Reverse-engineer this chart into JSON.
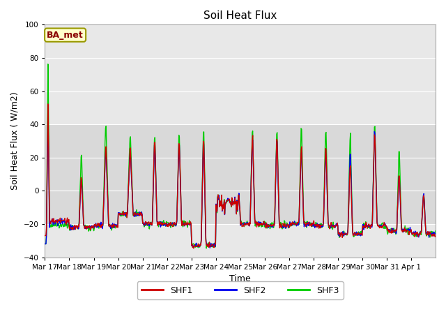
{
  "title": "Soil Heat Flux",
  "ylabel": "Soil Heat Flux ( W/m2)",
  "xlabel": "Time",
  "ylim": [
    -40,
    100
  ],
  "yticks": [
    -40,
    -20,
    0,
    20,
    40,
    60,
    80,
    100
  ],
  "legend_labels": [
    "SHF1",
    "SHF2",
    "SHF3"
  ],
  "legend_colors": [
    "#cc0000",
    "#0000ee",
    "#00cc00"
  ],
  "line_colors": [
    "#cc0000",
    "#0000ee",
    "#00cc00"
  ],
  "station_label": "BA_met",
  "station_label_color": "#880000",
  "station_box_facecolor": "#ffffcc",
  "station_box_edgecolor": "#999900",
  "plot_bg_light": "#e8e8e8",
  "plot_bg_dark": "#d0d0d0",
  "fig_bg": "#ffffff",
  "shaded_band_low": -20,
  "shaded_band_high": 40,
  "day_labels": [
    "Mar 17",
    "Mar 18",
    "Mar 19",
    "Mar 20",
    "Mar 21",
    "Mar 22",
    "Mar 23",
    "Mar 24",
    "Mar 25",
    "Mar 26",
    "Mar 27",
    "Mar 28",
    "Mar 29",
    "Mar 30",
    "Mar 31",
    "Apr 1"
  ]
}
